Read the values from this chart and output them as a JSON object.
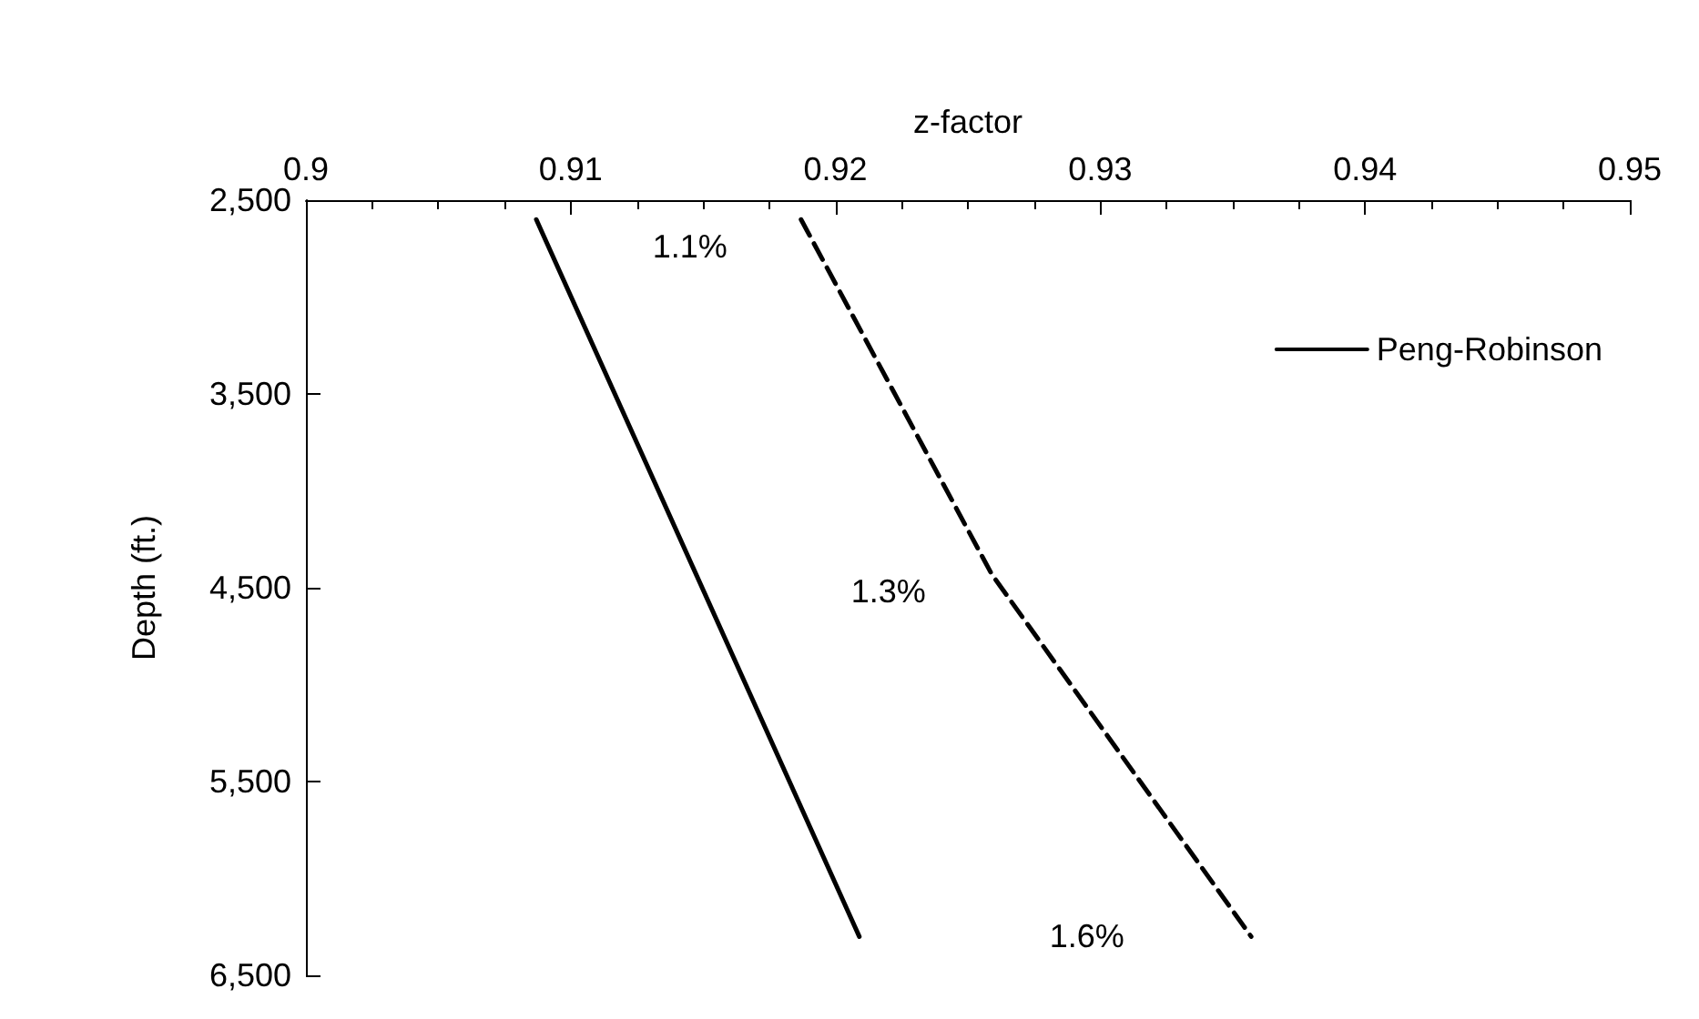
{
  "chart_data": {
    "type": "line",
    "xlabel": "z-factor",
    "ylabel": "Depth (ft.)",
    "xlim": [
      0.9,
      0.95
    ],
    "xticks": [
      0.9,
      0.91,
      0.92,
      0.93,
      0.94,
      0.95
    ],
    "ylim": [
      6500,
      2500
    ],
    "yticks": [
      {
        "value": 2500,
        "label": "2,500"
      },
      {
        "value": 3500,
        "label": "3,500"
      },
      {
        "value": 4500,
        "label": "4,500"
      },
      {
        "value": 5500,
        "label": "5,500"
      },
      {
        "value": 6500,
        "label": "6,500"
      }
    ],
    "series": [
      {
        "name": "Peng-Robinson",
        "color": "#000000",
        "line_style": "solid",
        "x": [
          0.9087,
          0.9209
        ],
        "values": [
          2600,
          6300
        ]
      },
      {
        "color": "#000000",
        "line_style": "dashed",
        "x": [
          0.9187,
          0.9259,
          0.9357
        ],
        "values": [
          2600,
          4430,
          6300
        ]
      }
    ],
    "annotations": [
      "1.1%",
      "1.3%",
      "1.6%"
    ],
    "legend": "top right",
    "grid": false,
    "marker": "none"
  }
}
